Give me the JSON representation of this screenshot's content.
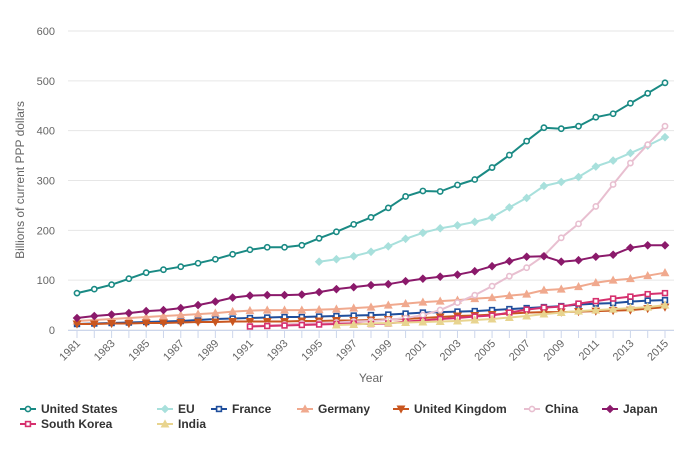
{
  "chart_data": {
    "type": "line",
    "title": "",
    "xlabel": "Year",
    "ylabel": "Billions of current PPP dollars",
    "xlim": [
      1981,
      2015
    ],
    "ylim": [
      0,
      600
    ],
    "x_ticks": [
      1981,
      1983,
      1985,
      1987,
      1989,
      1991,
      1993,
      1995,
      1997,
      1999,
      2001,
      2003,
      2005,
      2007,
      2009,
      2011,
      2013,
      2015
    ],
    "y_ticks": [
      0,
      100,
      200,
      300,
      400,
      500,
      600
    ],
    "grid": "horizontal",
    "legend_position": "bottom",
    "series": [
      {
        "name": "United States",
        "color": "#1a8a84",
        "marker": "circle",
        "start": 1981,
        "values": [
          74,
          82,
          91,
          103,
          115,
          121,
          127,
          134,
          142,
          152,
          161,
          166,
          166,
          170,
          184,
          197,
          212,
          226,
          245,
          268,
          279,
          278,
          291,
          302,
          326,
          351,
          379,
          406,
          404,
          409,
          427,
          434,
          455,
          475,
          496
        ]
      },
      {
        "name": "EU",
        "color": "#a8e0dc",
        "marker": "diamond",
        "start": 1995,
        "values": [
          137,
          142,
          148,
          157,
          168,
          183,
          195,
          204,
          210,
          217,
          226,
          246,
          265,
          289,
          297,
          307,
          328,
          340,
          355,
          370,
          387
        ]
      },
      {
        "name": "France",
        "color": "#1f4e9c",
        "marker": "square",
        "start": 1981,
        "values": [
          12,
          13,
          14,
          15,
          16,
          17,
          18,
          20,
          22,
          23,
          24,
          25,
          26,
          26,
          27,
          28,
          29,
          30,
          31,
          33,
          35,
          36,
          37,
          38,
          40,
          42,
          44,
          46,
          48,
          51,
          53,
          54,
          57,
          59,
          60
        ]
      },
      {
        "name": "Germany",
        "color": "#f0a98e",
        "marker": "triangle",
        "start": 1981,
        "values": [
          18,
          20,
          22,
          24,
          26,
          28,
          30,
          32,
          34,
          37,
          39,
          40,
          40,
          40,
          41,
          42,
          44,
          46,
          50,
          53,
          56,
          58,
          60,
          63,
          65,
          69,
          72,
          80,
          82,
          87,
          95,
          100,
          103,
          109,
          115
        ]
      },
      {
        "name": "United Kingdom",
        "color": "#c9561f",
        "marker": "triangle-down",
        "start": 1981,
        "values": [
          12,
          12,
          13,
          13,
          14,
          14,
          15,
          16,
          16,
          17,
          17,
          17,
          17,
          18,
          18,
          19,
          19,
          20,
          21,
          22,
          24,
          26,
          28,
          29,
          31,
          33,
          35,
          36,
          36,
          37,
          38,
          39,
          40,
          43,
          46
        ]
      },
      {
        "name": "China",
        "color": "#e8bfd0",
        "marker": "circle",
        "start": 1991,
        "values": [
          8,
          9,
          11,
          13,
          14,
          15,
          17,
          18,
          20,
          24,
          30,
          40,
          55,
          70,
          88,
          108,
          125,
          149,
          185,
          213,
          248,
          292,
          335,
          372,
          409
        ]
      },
      {
        "name": "Japan",
        "color": "#8b1a6b",
        "marker": "diamond",
        "start": 1981,
        "values": [
          24,
          28,
          31,
          34,
          38,
          40,
          44,
          50,
          57,
          65,
          69,
          70,
          70,
          71,
          76,
          82,
          86,
          90,
          92,
          98,
          103,
          107,
          111,
          118,
          128,
          138,
          147,
          148,
          137,
          140,
          147,
          151,
          165,
          170,
          170
        ]
      },
      {
        "name": "South Korea",
        "color": "#d6306e",
        "marker": "square",
        "start": 1991,
        "values": [
          7,
          8,
          9,
          10,
          11,
          12,
          13,
          12,
          13,
          17,
          19,
          22,
          24,
          27,
          29,
          35,
          41,
          45,
          47,
          53,
          58,
          63,
          67,
          72,
          74
        ]
      },
      {
        "name": "India",
        "color": "#e8d48f",
        "marker": "triangle",
        "start": 1996,
        "values": [
          10,
          11,
          13,
          14,
          15,
          16,
          17,
          18,
          20,
          22,
          25,
          28,
          32,
          35,
          38,
          40,
          42,
          44,
          46,
          50
        ]
      }
    ]
  }
}
